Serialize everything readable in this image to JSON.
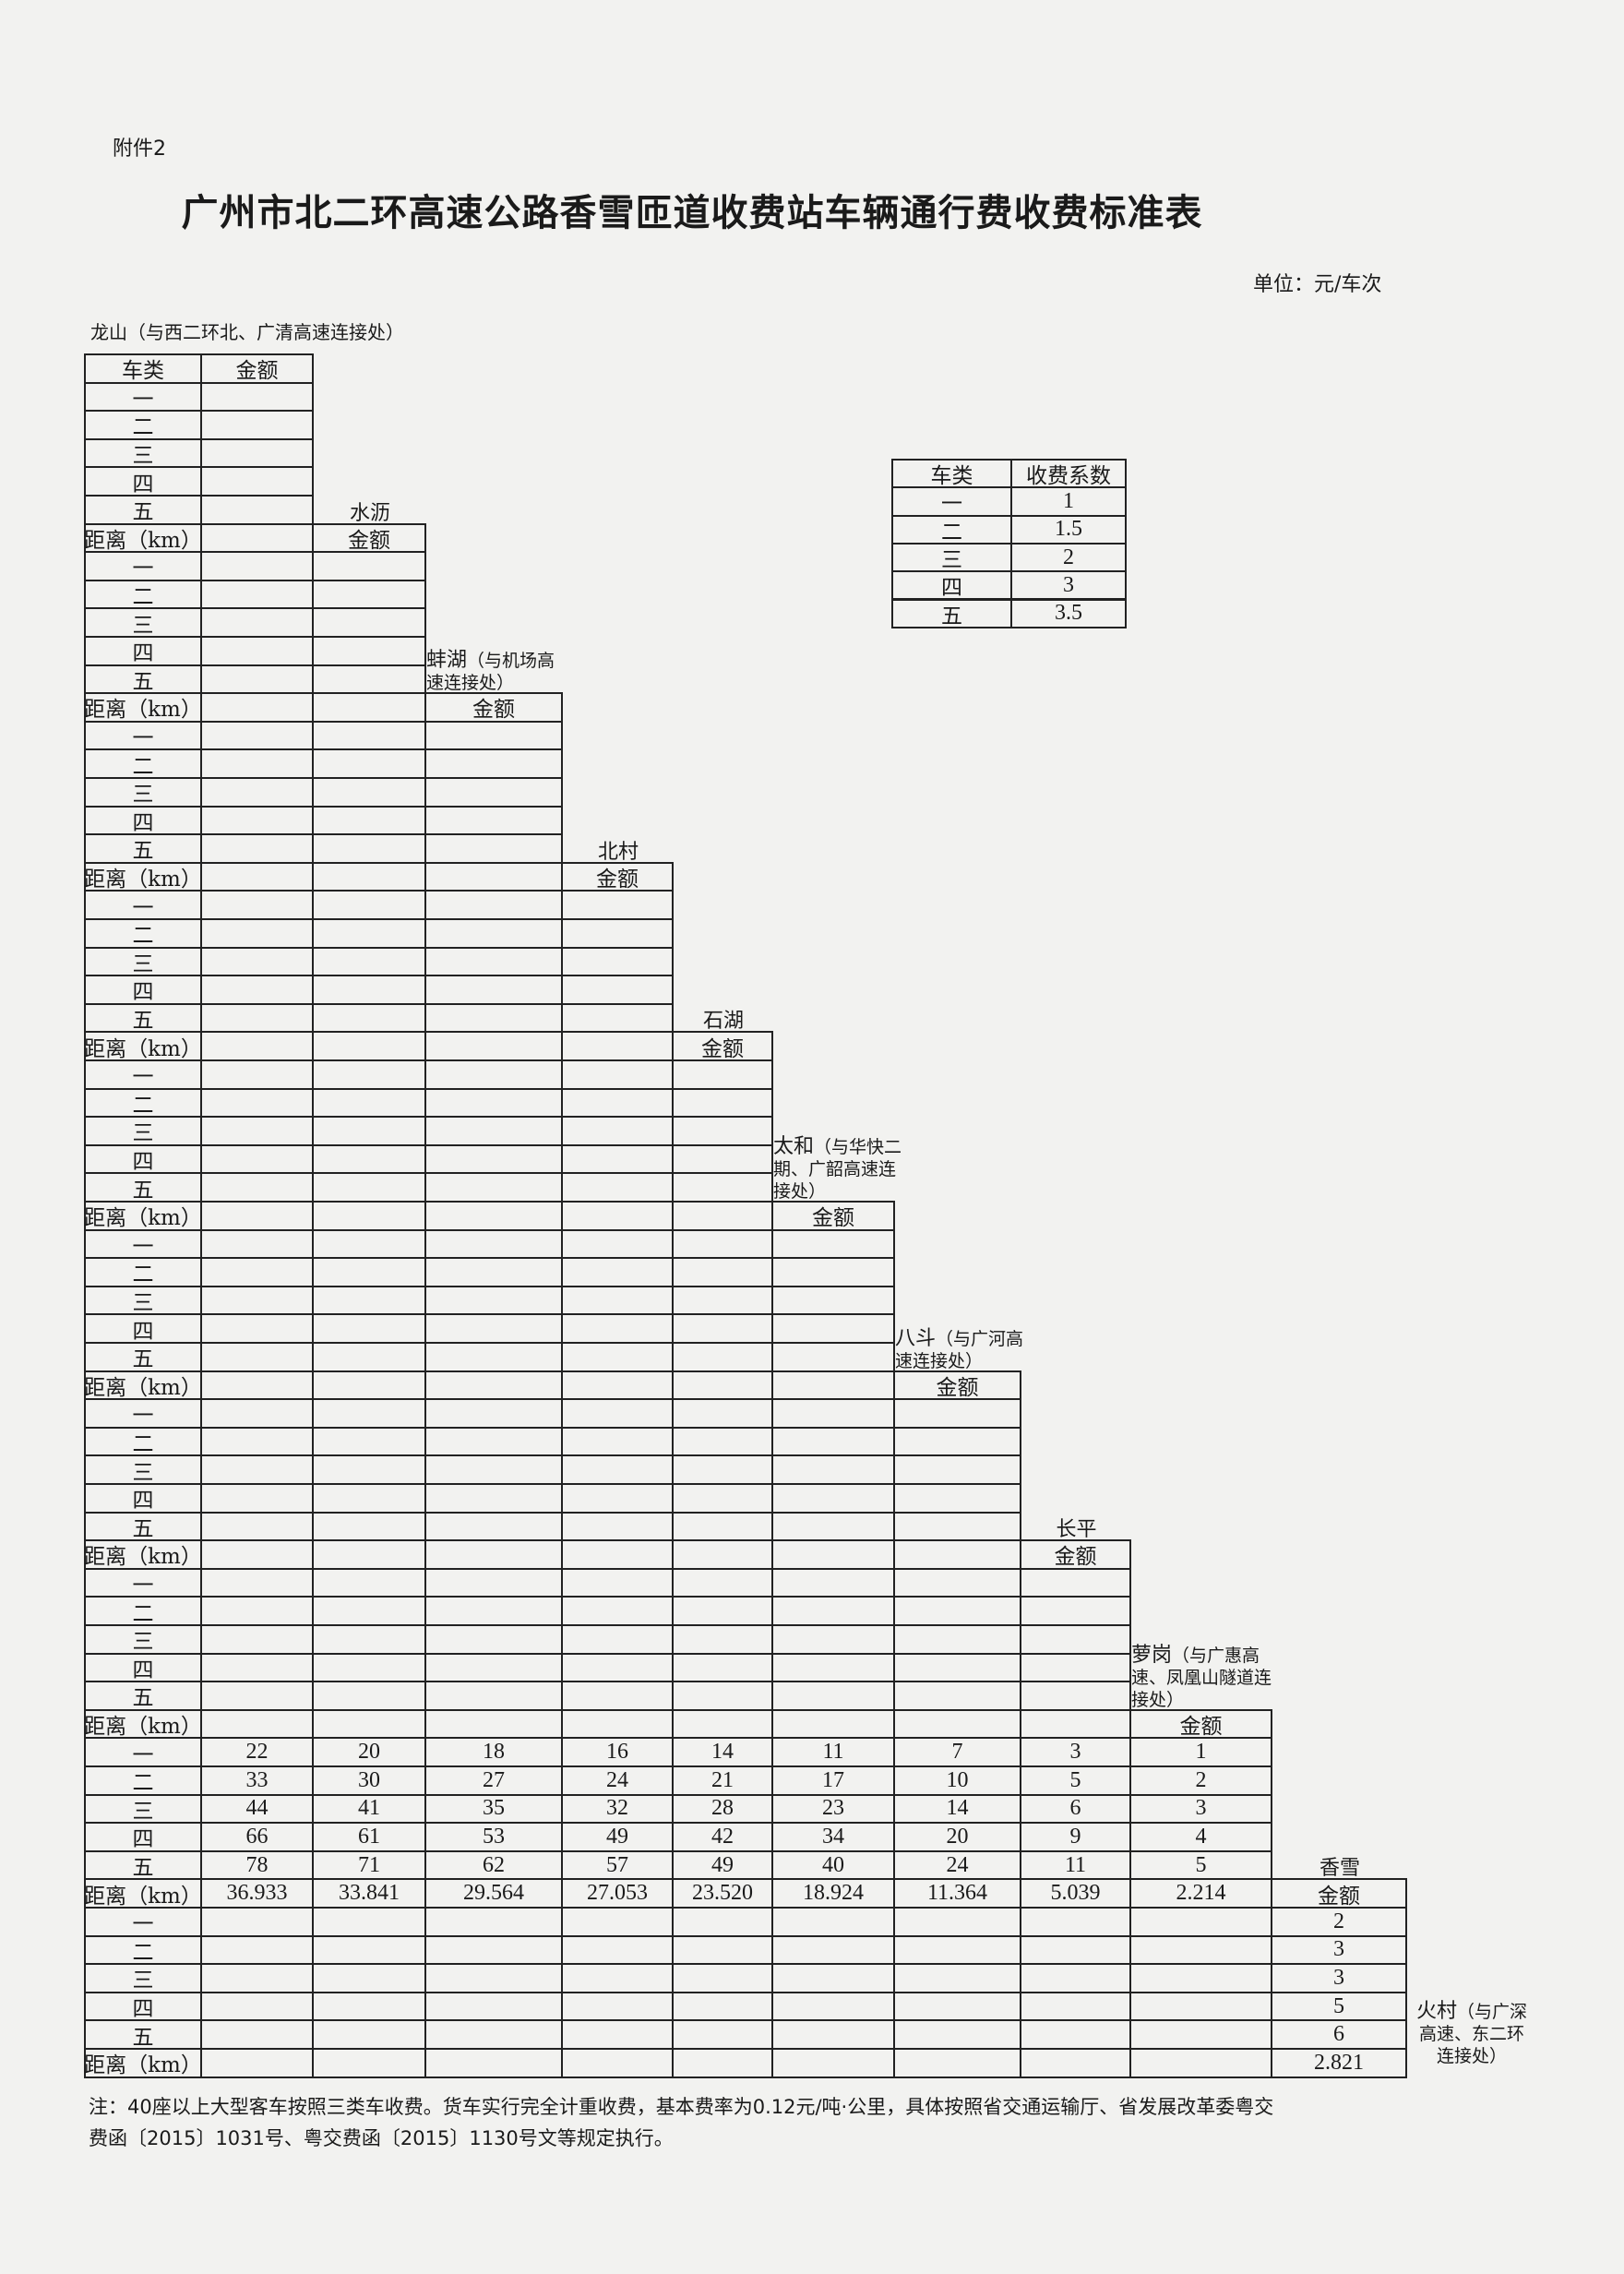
{
  "doc": {
    "attachment": "附件2",
    "title": "广州市北二环高速公路香雪匝道收费站车辆通行费收费标准表",
    "unit": "单位：元/车次",
    "note_line1": "注：40座以上大型客车按照三类车收费。货车实行完全计重收费，基本费率为0.12元/吨·公里，具体按照省交通运输厅、省发展改革委粤交",
    "note_line2": "费函〔2015〕1031号、粤交费函〔2015〕1130号文等规定执行。"
  },
  "table": {
    "vehicle_header": "车类",
    "amount_header": "金额",
    "distance_label": "距离（km）",
    "classes": [
      "一",
      "二",
      "三",
      "四",
      "五"
    ],
    "stations": [
      {
        "name": "龙山",
        "note": "（与西二环北、广清高速连接处）"
      },
      {
        "name": "水沥",
        "note": ""
      },
      {
        "name": "蚌湖",
        "note": "（与机场高速连接处）"
      },
      {
        "name": "北村",
        "note": ""
      },
      {
        "name": "石湖",
        "note": ""
      },
      {
        "name": "太和",
        "note": "（与华快二期、广韶高速连接处）"
      },
      {
        "name": "八斗",
        "note": "（与广河高速连接处）"
      },
      {
        "name": "长平",
        "note": ""
      },
      {
        "name": "萝岗",
        "note": "（与广惠高速、凤凰山隧道连接处）"
      },
      {
        "name": "香雪",
        "note": ""
      },
      {
        "name": "火村",
        "note": "（与广深高速、东二环连接处）"
      }
    ],
    "fare_rows": [
      {
        "to": "香雪",
        "entries": [
          {
            "from": "龙山",
            "fares": [
              "22",
              "33",
              "44",
              "66",
              "78"
            ],
            "distance": "36.933"
          },
          {
            "from": "水沥",
            "fares": [
              "20",
              "30",
              "41",
              "61",
              "71"
            ],
            "distance": "33.841"
          },
          {
            "from": "蚌湖",
            "fares": [
              "18",
              "27",
              "35",
              "53",
              "62"
            ],
            "distance": "29.564"
          },
          {
            "from": "北村",
            "fares": [
              "16",
              "24",
              "32",
              "49",
              "57"
            ],
            "distance": "27.053"
          },
          {
            "from": "石湖",
            "fares": [
              "14",
              "21",
              "28",
              "42",
              "49"
            ],
            "distance": "23.520"
          },
          {
            "from": "太和",
            "fares": [
              "11",
              "17",
              "23",
              "34",
              "40"
            ],
            "distance": "18.924"
          },
          {
            "from": "八斗",
            "fares": [
              "7",
              "10",
              "14",
              "20",
              "24"
            ],
            "distance": "11.364"
          },
          {
            "from": "长平",
            "fares": [
              "3",
              "5",
              "6",
              "9",
              "11"
            ],
            "distance": "5.039"
          },
          {
            "from": "萝岗",
            "fares": [
              "1",
              "2",
              "3",
              "4",
              "5"
            ],
            "distance": "2.214"
          }
        ]
      },
      {
        "to": "火村",
        "entries": [
          {
            "from": "香雪",
            "fares": [
              "2",
              "3",
              "3",
              "5",
              "6"
            ],
            "distance": "2.821"
          }
        ]
      }
    ]
  },
  "coefficients": {
    "header_class": "车类",
    "header_coef": "收费系数",
    "rows": [
      {
        "class": "一",
        "coef": "1"
      },
      {
        "class": "二",
        "coef": "1.5"
      },
      {
        "class": "三",
        "coef": "2"
      },
      {
        "class": "四",
        "coef": "3"
      },
      {
        "class": "五",
        "coef": "3.5"
      }
    ]
  }
}
